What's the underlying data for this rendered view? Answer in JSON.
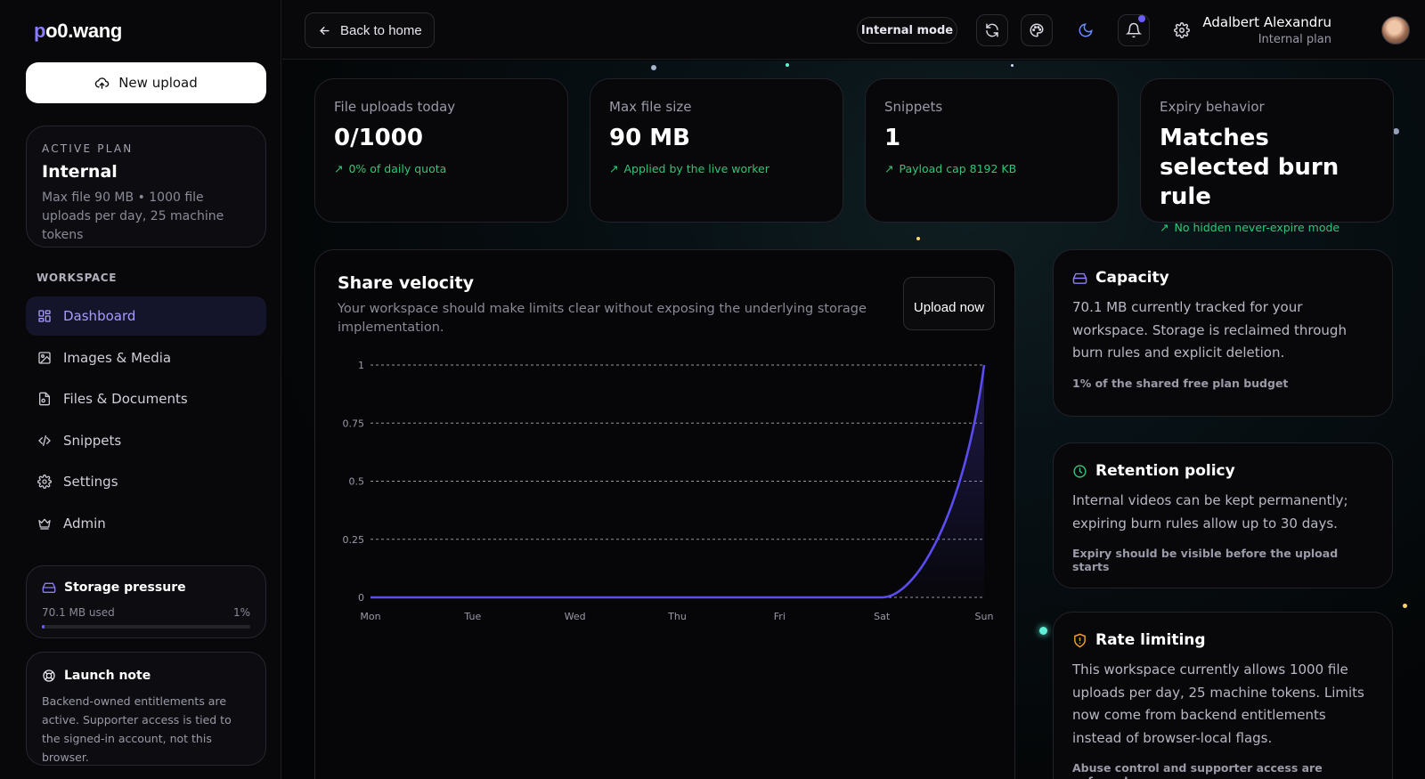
{
  "app": {
    "logo_prefix": "p",
    "logo_rest": "o0.wang"
  },
  "sidebar": {
    "new_upload_label": "New upload",
    "plan": {
      "eyebrow": "ACTIVE PLAN",
      "name": "Internal",
      "description": "Max file 90 MB • 1000 file uploads per day, 25 machine tokens"
    },
    "workspace_label": "WORKSPACE",
    "items": [
      {
        "label": "Dashboard",
        "icon": "dashboard-icon",
        "active": true
      },
      {
        "label": "Images & Media",
        "icon": "image-icon"
      },
      {
        "label": "Files & Documents",
        "icon": "file-icon"
      },
      {
        "label": "Snippets",
        "icon": "code-icon"
      },
      {
        "label": "Settings",
        "icon": "gear-icon"
      },
      {
        "label": "Admin",
        "icon": "crown-icon"
      }
    ],
    "storage": {
      "title": "Storage pressure",
      "used": "70.1 MB used",
      "percent": "1%",
      "fraction": 0.01
    },
    "launch": {
      "title": "Launch note",
      "text": "Backend-owned entitlements are active. Supporter access is tied to the signed-in account, not this browser."
    }
  },
  "topbar": {
    "back_label": "Back to home",
    "mode_label": "Internal mode",
    "user_name": "Adalbert Alexandru",
    "user_plan": "Internal plan"
  },
  "stats": [
    {
      "label": "File uploads today",
      "value": "0/1000",
      "note": "0% of daily quota"
    },
    {
      "label": "Max file size",
      "value": "90 MB",
      "note": "Applied by the live worker"
    },
    {
      "label": "Snippets",
      "value": "1",
      "note": "Payload cap 8192 KB"
    },
    {
      "label": "Expiry behavior",
      "value": "Matches selected burn rule",
      "note": "No hidden never-expire mode"
    }
  ],
  "velocity": {
    "title": "Share velocity",
    "subtitle": "Your workspace should make limits clear without exposing the underlying storage implementation.",
    "button": "Upload now"
  },
  "chart_data": {
    "type": "area",
    "categories": [
      "Mon",
      "Tue",
      "Wed",
      "Thu",
      "Fri",
      "Sat",
      "Sun"
    ],
    "values": [
      0,
      0,
      0,
      0,
      0,
      0,
      1
    ],
    "ylim": [
      0,
      1
    ],
    "yticks": [
      0,
      0.25,
      0.5,
      0.75,
      1
    ],
    "ytick_labels": [
      "0",
      "0.25",
      "0.5",
      "0.75",
      "1"
    ],
    "grid": true,
    "color": "#5b4cf0"
  },
  "cards": {
    "capacity": {
      "title": "Capacity",
      "text": "70.1 MB currently tracked for your workspace. Storage is reclaimed through burn rules and explicit deletion.",
      "foot": "1% of the shared free plan budget"
    },
    "retention": {
      "title": "Retention policy",
      "text": "Internal videos can be kept permanently; expiring burn rules allow up to 30 days.",
      "foot": "Expiry should be visible before the upload starts"
    },
    "rate": {
      "title": "Rate limiting",
      "text": "This workspace currently allows 1000 file uploads per day, 25 machine tokens. Limits now come from backend entitlements instead of browser-local flags.",
      "foot": "Abuse control and supporter access are enforced server"
    }
  },
  "colors": {
    "accent": "#6b5cff",
    "success": "#2fc776",
    "retention": "#2fc776",
    "rate": "#f5a524"
  }
}
